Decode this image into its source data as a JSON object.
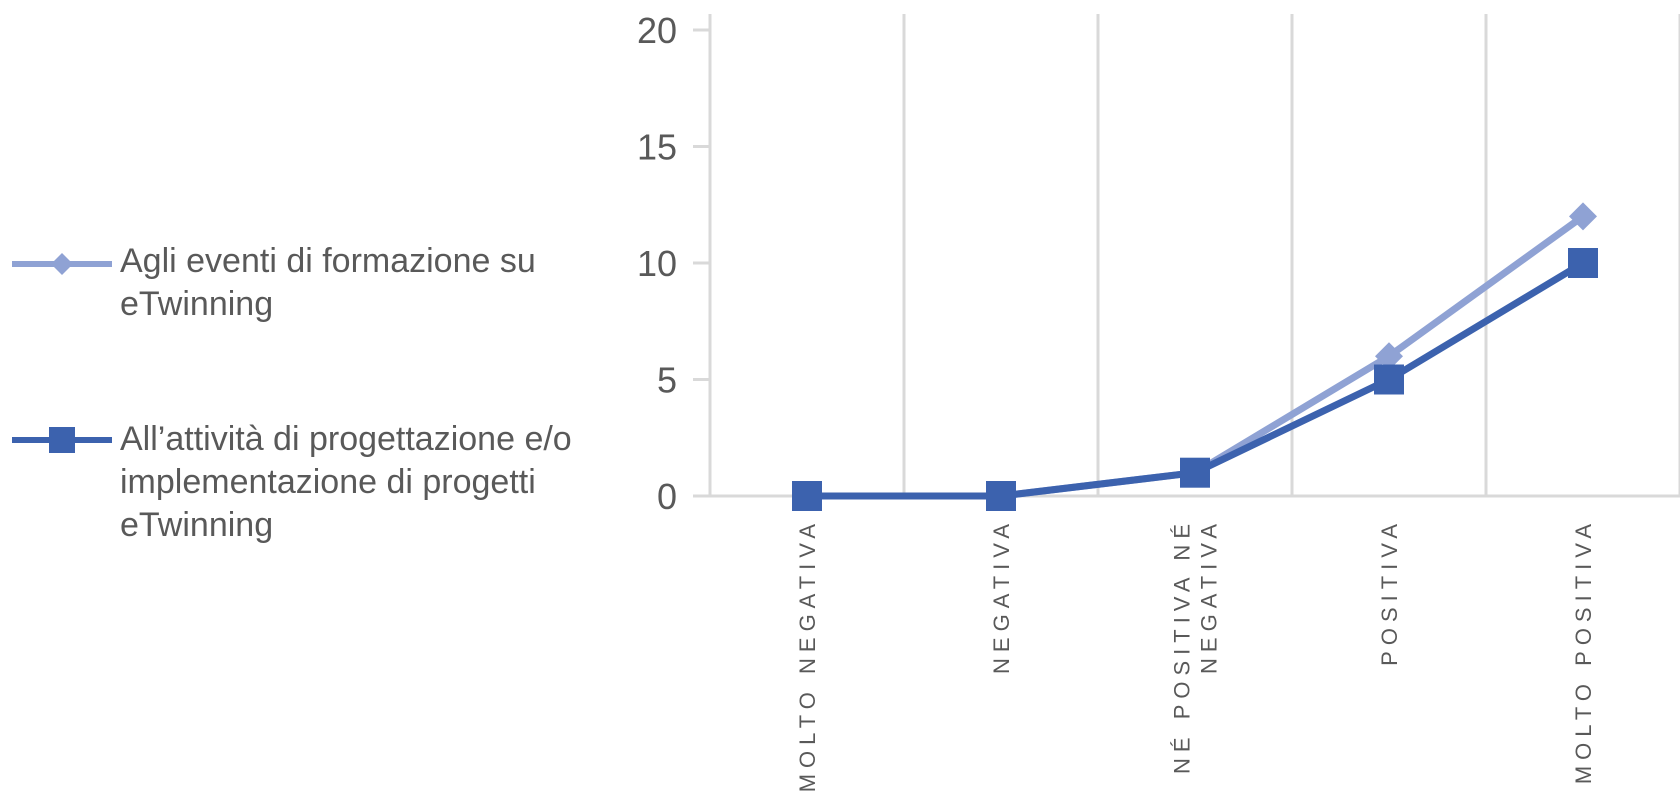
{
  "chart_data": {
    "type": "line",
    "categories": [
      "MOLTO NEGATIVA",
      "NEGATIVA",
      "NÉ POSITIVA NÉ NEGATIVA",
      "POSITIVA",
      "MOLTO POSITIVA"
    ],
    "category_lines": [
      [
        "MOLTO NEGATIVA"
      ],
      [
        "NEGATIVA"
      ],
      [
        "NÉ POSITIVA NÉ",
        "NEGATIVA"
      ],
      [
        "POSITIVA"
      ],
      [
        "MOLTO POSITIVA"
      ]
    ],
    "series": [
      {
        "name": "Agli eventi di formazione su eTwinning",
        "name_lines": [
          "Agli eventi di formazione su",
          "eTwinning"
        ],
        "values": [
          0,
          0,
          1,
          6,
          12
        ],
        "color": "#8FA2D4",
        "marker": "diamond"
      },
      {
        "name": "All’attività  di progettazione e/o implementazione di progetti eTwinning",
        "name_lines": [
          "All’attività  di progettazione e/o",
          "implementazione di progetti",
          "eTwinning"
        ],
        "values": [
          0,
          0,
          1,
          5,
          10
        ],
        "color": "#3C62AE",
        "marker": "square"
      }
    ],
    "y_ticks": [
      "0",
      "5",
      "10",
      "15",
      "20"
    ],
    "ylim": [
      0,
      20
    ],
    "grid": "vertical",
    "legend": "left",
    "title": "",
    "xlabel": "",
    "ylabel": ""
  }
}
